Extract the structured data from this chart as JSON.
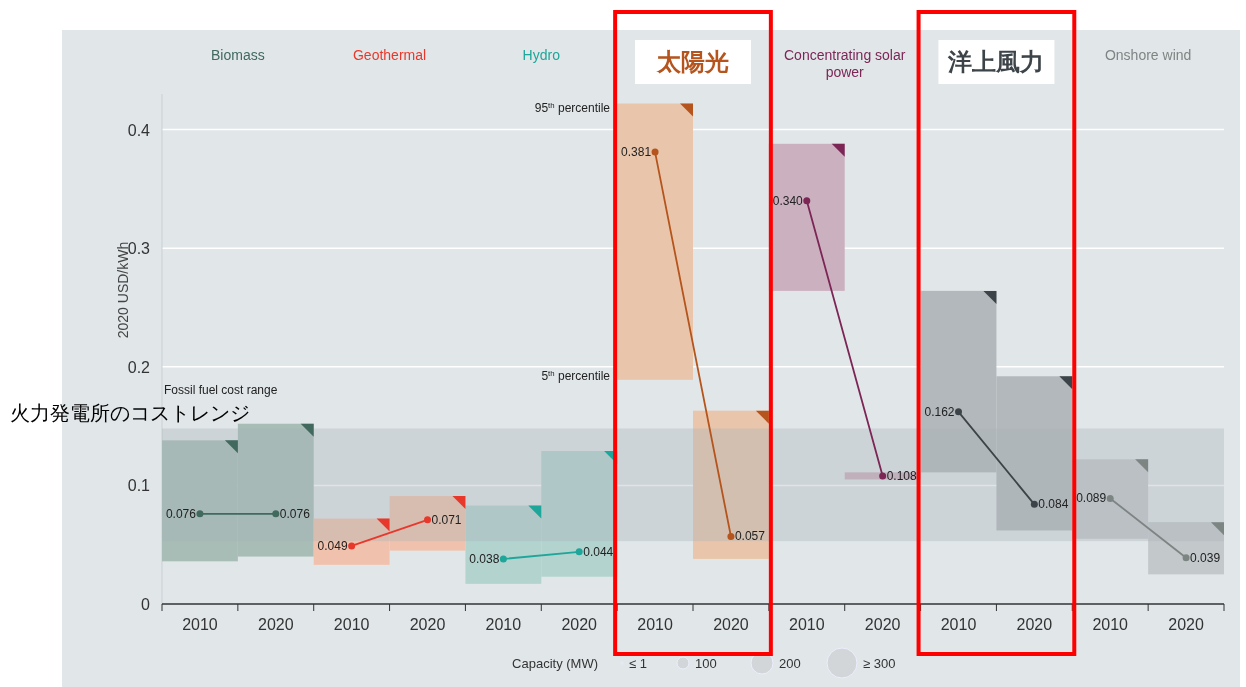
{
  "chart_data": {
    "type": "bar",
    "ylabel": "2020 USD/kWh",
    "categories": [
      "2010",
      "2020",
      "2010",
      "2020",
      "2010",
      "2020",
      "2010",
      "2020",
      "2010",
      "2020",
      "2010",
      "2020",
      "2010",
      "2020"
    ],
    "ylim": [
      0,
      0.43
    ],
    "yticks": [
      0,
      0.1,
      0.2,
      0.3,
      0.4
    ],
    "grid": "y",
    "marker": "circle",
    "line_style": "solid",
    "series": [
      {
        "colors": [
          "#a7bdb6",
          "#a7bdb6",
          "#f0c2ad",
          "#f0c2ad",
          "#b3d3cf",
          "#b3d3cf",
          "#e9c6ab",
          "#e9c6ab",
          "#cbb0bf",
          "#cbb0bf",
          "#b3b8bc",
          "#b3b8bc",
          "#c3c8cb",
          "#c3c8cb"
        ],
        "base": [
          0.036,
          0.04,
          0.033,
          0.045,
          0.017,
          0.023,
          0.189,
          0.038,
          0.264,
          0.105,
          0.111,
          0.062,
          0.055,
          0.025
        ],
        "values": [
          0.102,
          0.112,
          0.039,
          0.046,
          0.066,
          0.106,
          0.233,
          0.125,
          0.124,
          0.006,
          0.153,
          0.13,
          0.067,
          0.044
        ]
      },
      {
        "type": "line",
        "name": "Biomass",
        "color": "#41695e",
        "data_labels": true,
        "values": [
          0.076,
          0.076,
          null,
          null,
          null,
          null,
          null,
          null,
          null,
          null,
          null,
          null,
          null,
          null
        ]
      },
      {
        "type": "line",
        "name": "Geothermal",
        "color": "#e8382b",
        "data_labels": true,
        "values": [
          null,
          null,
          0.049,
          0.071,
          null,
          null,
          null,
          null,
          null,
          null,
          null,
          null,
          null,
          null
        ]
      },
      {
        "type": "line",
        "name": "Hydro",
        "color": "#1fa69a",
        "data_labels": true,
        "values": [
          null,
          null,
          null,
          null,
          0.038,
          0.044,
          null,
          null,
          null,
          null,
          null,
          null,
          null,
          null
        ]
      },
      {
        "type": "line",
        "name": "太陽光",
        "color": "#b5541c",
        "data_labels": true,
        "values": [
          null,
          null,
          null,
          null,
          null,
          null,
          0.381,
          0.057,
          null,
          null,
          null,
          null,
          null,
          null
        ]
      },
      {
        "type": "line",
        "name": "Concentrating solar power",
        "color": "#7c2656",
        "values": [
          null,
          null,
          null,
          null,
          null,
          null,
          null,
          null,
          0.34,
          0.108,
          null,
          null,
          null,
          null
        ],
        "value_labels": [
          null,
          null,
          null,
          null,
          null,
          null,
          null,
          null,
          "0.340",
          "0.108",
          null,
          null,
          null,
          null
        ]
      },
      {
        "type": "line",
        "name": "洋上風力",
        "color": "#3d4449",
        "data_labels": true,
        "values": [
          null,
          null,
          null,
          null,
          null,
          null,
          null,
          null,
          null,
          null,
          0.162,
          0.084,
          null,
          null
        ]
      },
      {
        "type": "line",
        "name": "Onshore wind",
        "color": "#7d8583",
        "data_labels": true,
        "values": [
          null,
          null,
          null,
          null,
          null,
          null,
          null,
          null,
          null,
          null,
          null,
          null,
          0.089,
          0.039
        ]
      }
    ],
    "bands": [
      {
        "axis": "y",
        "from": 0.053,
        "to": 0.148,
        "label": "Fossil fuel cost range",
        "color": "#a9b1b8"
      }
    ],
    "annotations": [
      "95$^{th}$ percentile",
      "5$^{th}$ percentile",
      "火力発電所のコストレンジ",
      "Capacity (MW)",
      "≤ 1",
      "100",
      "200",
      "≥ 300"
    ]
  }
}
